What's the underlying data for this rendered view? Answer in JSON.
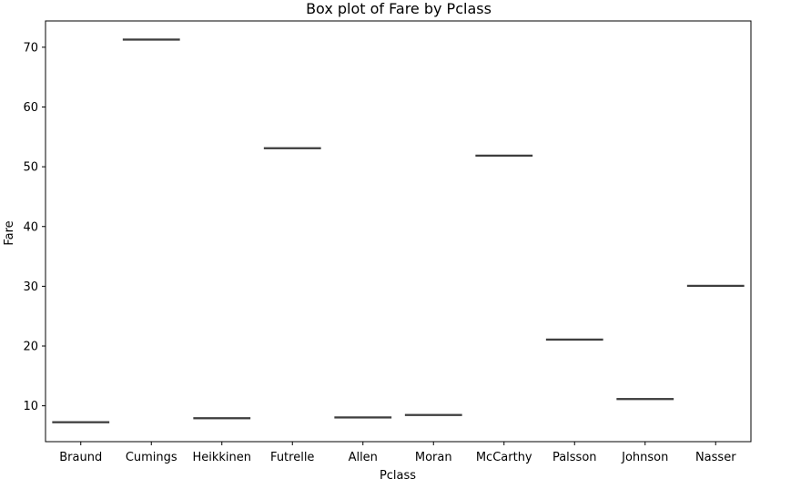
{
  "chart_data": {
    "type": "box",
    "title": "Box plot of Fare by Pclass",
    "xlabel": "Pclass",
    "ylabel": "Fare",
    "categories": [
      "Braund",
      "Cumings",
      "Heikkinen",
      "Futrelle",
      "Allen",
      "Moran",
      "McCarthy",
      "Palsson",
      "Johnson",
      "Nasser"
    ],
    "values": [
      7.25,
      71.28,
      7.92,
      53.1,
      8.05,
      8.46,
      51.86,
      21.08,
      11.13,
      30.07
    ],
    "ylim": [
      4.0,
      74.4
    ],
    "yticks": [
      10,
      20,
      30,
      40,
      50,
      60,
      70
    ],
    "grid": false,
    "colors": {
      "box_line": "#3f3f3f",
      "axis": "#000000"
    }
  }
}
